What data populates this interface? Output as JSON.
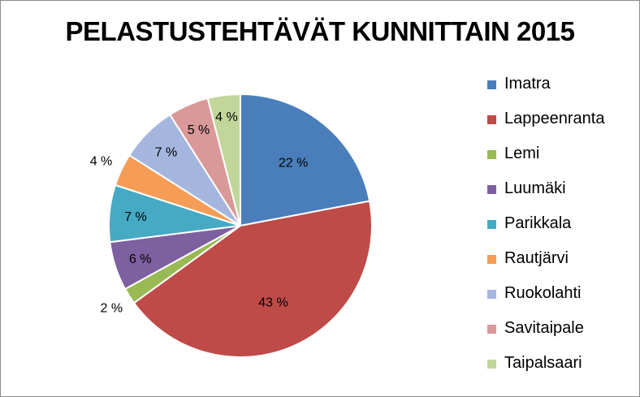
{
  "chart_data": {
    "type": "pie",
    "title": "PELASTUSTEHTÄVÄT KUNNITTAIN 2015",
    "categories": [
      "Imatra",
      "Lappeenranta",
      "Lemi",
      "Luumäki",
      "Parikkala",
      "Rautjärvi",
      "Ruokolahti",
      "Savitaipale",
      "Taipalsaari"
    ],
    "values": [
      22,
      43,
      2,
      6,
      7,
      4,
      7,
      5,
      4
    ],
    "labels": [
      "22 %",
      "43 %",
      "2 %",
      "6 %",
      "7 %",
      "4 %",
      "7 %",
      "5 %",
      "4 %"
    ],
    "colors": [
      "#4a7ebb",
      "#be4b48",
      "#98b954",
      "#7d60a0",
      "#46aac5",
      "#f59d56",
      "#a5b6de",
      "#d89998",
      "#c2d69b"
    ],
    "legend_position": "right"
  }
}
